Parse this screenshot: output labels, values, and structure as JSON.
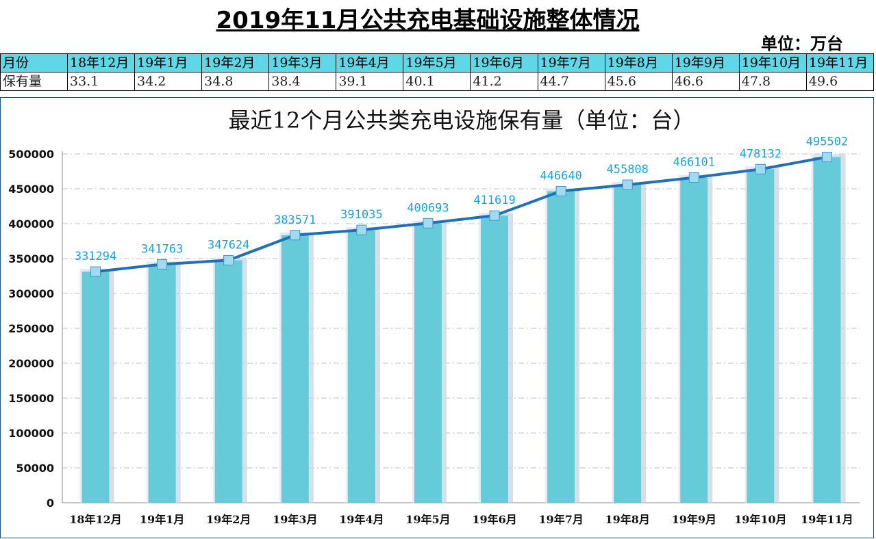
{
  "header": {
    "title": "2019年11月公共充电基础设施整体情况",
    "unit": "单位：万台"
  },
  "table": {
    "row_labels": [
      "月份",
      "保有量"
    ],
    "months": [
      "18年12月",
      "19年1月",
      "19年2月",
      "19年3月",
      "19年4月",
      "19年5月",
      "19年6月",
      "19年7月",
      "19年8月",
      "19年9月",
      "19年10月",
      "19年11月"
    ],
    "values": [
      "33.1",
      "34.2",
      "34.8",
      "38.4",
      "39.1",
      "40.1",
      "41.2",
      "44.7",
      "45.6",
      "46.6",
      "47.8",
      "49.6"
    ]
  },
  "chart_data": {
    "type": "bar",
    "title": "最近12个月公共类充电设施保有量（单位：台）",
    "categories": [
      "18年12月",
      "19年1月",
      "19年2月",
      "19年3月",
      "19年4月",
      "19年5月",
      "19年6月",
      "19年7月",
      "19年8月",
      "19年9月",
      "19年10月",
      "19年11月"
    ],
    "values": [
      331294,
      341763,
      347624,
      383571,
      391035,
      400693,
      411619,
      446640,
      455808,
      466101,
      478132,
      495502
    ],
    "line_overlay": true,
    "ylim": [
      0,
      500000
    ],
    "yticks": [
      "0",
      "50000",
      "100000",
      "150000",
      "200000",
      "250000",
      "300000",
      "350000",
      "400000",
      "450000",
      "500000"
    ],
    "grid": true,
    "colors": {
      "bar": "#66cbd9",
      "line": "#1f70b8",
      "marker": "#9fdcef",
      "label": "#1aa3d9"
    }
  }
}
